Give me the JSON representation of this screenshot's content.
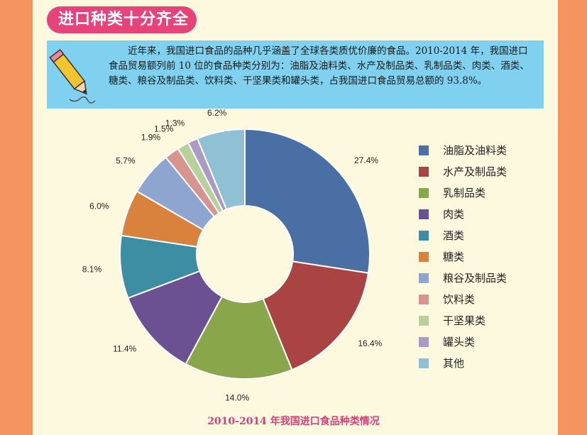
{
  "header": {
    "title": "进口种类十分齐全"
  },
  "intro": {
    "text": "近年来，我国进口食品的品种几乎涵盖了全球各类质优价廉的食品。2010-2014 年，我国进口食品贸易额列前 10 位的食品种类分别为：油脂及油料类、水产及制品类、乳制品类、肉类、酒类、糖类、粮谷及制品类、饮料类、干坚果类和罐头类，占我国进口食品贸易总额的 93.8%。"
  },
  "icons": {
    "pencil": "pencil-icon"
  },
  "colors": {
    "background": "#f4955f",
    "panel": "#fdf9df",
    "title_tag": "#e6437a",
    "intro_box": "#7fd1ef",
    "caption": "#d63f79"
  },
  "chart_data": {
    "type": "pie",
    "donut": true,
    "title": "2010-2014 年我国进口食品种类情况",
    "legend_position": "right",
    "categories": [
      "油脂及油料类",
      "水产及制品类",
      "乳制品类",
      "肉类",
      "酒类",
      "糖类",
      "粮谷及制品类",
      "饮料类",
      "干坚果类",
      "罐头类",
      "其他"
    ],
    "values": [
      27.4,
      16.4,
      14.0,
      11.4,
      8.1,
      6.0,
      5.7,
      1.9,
      1.5,
      1.3,
      6.2
    ],
    "labels": [
      "27.4%",
      "16.4%",
      "14.0%",
      "11.4%",
      "8.1%",
      "6.0%",
      "5.7%",
      "1.9%",
      "1.5%",
      "1.3%",
      "6.2%"
    ],
    "colors": [
      "#4a6fa5",
      "#a94442",
      "#8aa64a",
      "#6b5192",
      "#3d8ea3",
      "#d9823d",
      "#8ea5d0",
      "#d8948f",
      "#b9d09a",
      "#a99bc4",
      "#8fc0d4"
    ]
  }
}
